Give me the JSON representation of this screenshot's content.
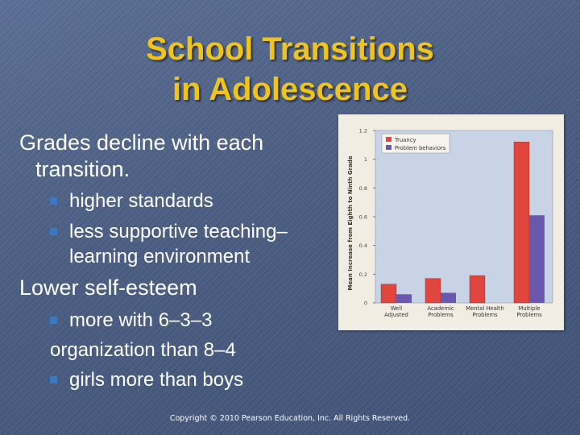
{
  "slide": {
    "title_line1": "School Transitions",
    "title_line2": "in Adolescence",
    "bullet1_line1": "Grades decline with each",
    "bullet1_line2": "transition.",
    "sub1": "higher standards",
    "sub2_line1": "less supportive teaching–",
    "sub2_line2": "learning environment",
    "bullet2": "Lower self-esteem",
    "sub3_line1": "more with 6–3–3",
    "sub3_line2": "organization than 8–4",
    "sub4": "girls more than boys",
    "copyright": "Copyright © 2010 Pearson Education, Inc. All Rights Reserved."
  },
  "colors": {
    "title": "#f0c419",
    "bullet": "#3a78c8",
    "truancy": "#e0453e",
    "problem_behaviors": "#6a58b0"
  },
  "chart_data": {
    "type": "bar",
    "categories": [
      [
        "Well",
        "Adjusted"
      ],
      [
        "Academic",
        "Problems"
      ],
      [
        "Mental Health",
        "Problems"
      ],
      [
        "Multiple",
        "Problems"
      ]
    ],
    "series": [
      {
        "name": "Truancy",
        "values": [
          0.13,
          0.17,
          0.19,
          1.12
        ]
      },
      {
        "name": "Problem behaviors",
        "values": [
          0.06,
          0.07,
          null,
          0.61
        ]
      }
    ],
    "ylabel": "Mean Increase from Eighth to Ninth Grade",
    "ylim": [
      0,
      1.2
    ],
    "yticks": [
      "0",
      "0.2",
      "0.4",
      "0.6",
      "0.8",
      "1",
      "1.2"
    ],
    "legend_position": "top-left",
    "grid": false
  }
}
